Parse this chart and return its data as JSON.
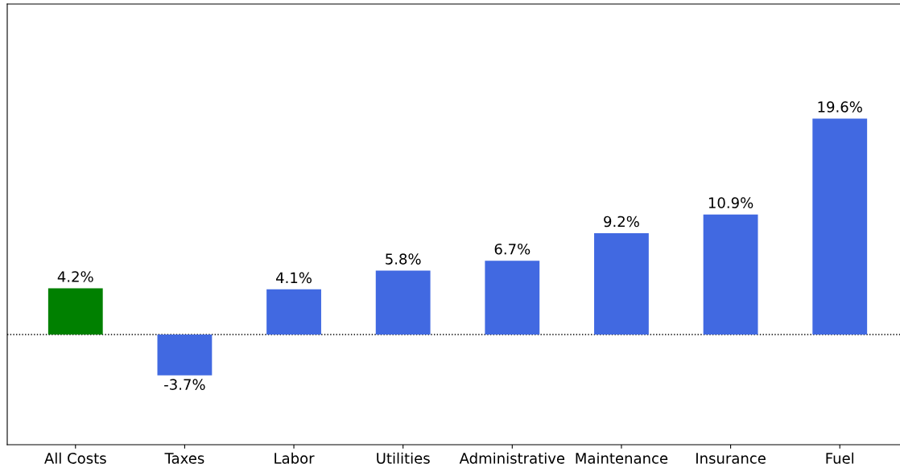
{
  "chart_data": {
    "type": "bar",
    "categories": [
      "All Costs",
      "Taxes",
      "Labor",
      "Utilities",
      "Administrative",
      "Maintenance",
      "Insurance",
      "Fuel"
    ],
    "values": [
      4.2,
      -3.7,
      4.1,
      5.8,
      6.7,
      9.2,
      10.9,
      19.6
    ],
    "colors": [
      "#008000",
      "#4169e1",
      "#4169e1",
      "#4169e1",
      "#4169e1",
      "#4169e1",
      "#4169e1",
      "#4169e1"
    ],
    "value_labels": [
      "4.2%",
      "-3.7%",
      "4.1%",
      "5.8%",
      "6.7%",
      "9.2%",
      "10.9%",
      "19.6%"
    ],
    "ref_lines": [
      {
        "axis": "y",
        "value": 0,
        "color": "#000000",
        "line_style": "dotted"
      }
    ],
    "grid": false,
    "legend": false
  }
}
